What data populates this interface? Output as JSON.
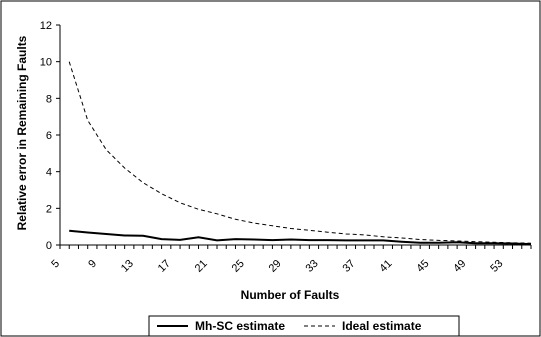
{
  "chart_data": {
    "type": "line",
    "title": "",
    "xlabel": "Number of Faults",
    "ylabel": "Relative error in Remaining Faults",
    "xlim": [
      5,
      56
    ],
    "ylim": [
      0,
      12
    ],
    "y_ticks": [
      0,
      2,
      4,
      6,
      8,
      10,
      12
    ],
    "x_ticks": [
      5,
      9,
      13,
      17,
      21,
      25,
      29,
      33,
      37,
      41,
      45,
      49,
      53
    ],
    "grid": false,
    "legend_position": "bottom",
    "x": [
      6,
      8,
      10,
      12,
      14,
      16,
      18,
      20,
      22,
      24,
      26,
      28,
      30,
      32,
      34,
      36,
      38,
      40,
      42,
      44,
      46,
      48,
      50,
      52,
      54,
      56
    ],
    "series": [
      {
        "name": "Mh-SC estimate",
        "style": "solid",
        "values": [
          0.78,
          0.68,
          0.6,
          0.52,
          0.5,
          0.32,
          0.28,
          0.42,
          0.25,
          0.32,
          0.3,
          0.27,
          0.3,
          0.27,
          0.27,
          0.25,
          0.25,
          0.25,
          0.18,
          0.12,
          0.12,
          0.15,
          0.1,
          0.1,
          0.08,
          0.05
        ]
      },
      {
        "name": "Ideal estimate",
        "style": "dashed",
        "values": [
          10.0,
          6.8,
          5.2,
          4.2,
          3.4,
          2.8,
          2.3,
          1.95,
          1.7,
          1.4,
          1.2,
          1.05,
          0.9,
          0.8,
          0.7,
          0.6,
          0.55,
          0.45,
          0.38,
          0.3,
          0.25,
          0.22,
          0.18,
          0.15,
          0.12,
          0.1
        ]
      }
    ]
  }
}
